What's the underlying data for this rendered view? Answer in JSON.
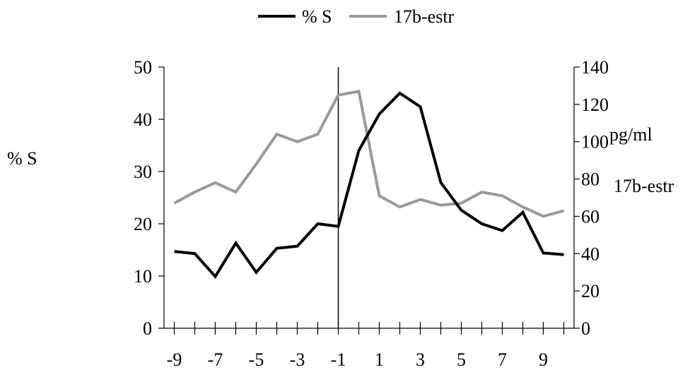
{
  "chart_data": {
    "type": "line",
    "title": "",
    "legend": {
      "placement": "top-center",
      "entries": [
        {
          "label": "% S",
          "color": "#000000"
        },
        {
          "label": "17b-estr",
          "color": "#999999"
        }
      ]
    },
    "x": [
      -9,
      -8,
      -7,
      -6,
      -5,
      -4,
      -3,
      -2,
      -1,
      0,
      1,
      2,
      3,
      4,
      5,
      6,
      7,
      8,
      9,
      10
    ],
    "x_tick_labels": [
      "-9",
      "-7",
      "-5",
      "-3",
      "-1",
      "1",
      "3",
      "5",
      "7",
      "9"
    ],
    "xlim": [
      -9.5,
      10.5
    ],
    "y_left": {
      "label": "% S",
      "ylim": [
        0,
        50
      ],
      "ticks": [
        "0",
        "10",
        "20",
        "30",
        "40",
        "50"
      ]
    },
    "y_right": {
      "label_line1": "pg/ml",
      "label_line2": "17b-estr",
      "ylim": [
        0,
        140
      ],
      "ticks": [
        "0",
        "20",
        "40",
        "60",
        "80",
        "100",
        "120",
        "140"
      ]
    },
    "marker_line_x": -1,
    "series": [
      {
        "name": "% S",
        "axis": "left",
        "color": "#000000",
        "values": [
          14.7,
          14.3,
          9.9,
          16.3,
          10.7,
          15.3,
          15.7,
          20.0,
          19.5,
          34.0,
          41.0,
          45.0,
          42.4,
          27.9,
          22.6,
          20.0,
          18.7,
          22.2,
          14.4,
          14.1
        ]
      },
      {
        "name": "17b-estr",
        "axis": "right",
        "color": "#999999",
        "values": [
          67,
          73,
          78,
          73,
          88,
          104,
          100,
          104,
          125,
          127,
          71,
          65,
          69,
          66,
          67,
          73,
          71,
          65,
          60,
          63
        ]
      }
    ]
  }
}
